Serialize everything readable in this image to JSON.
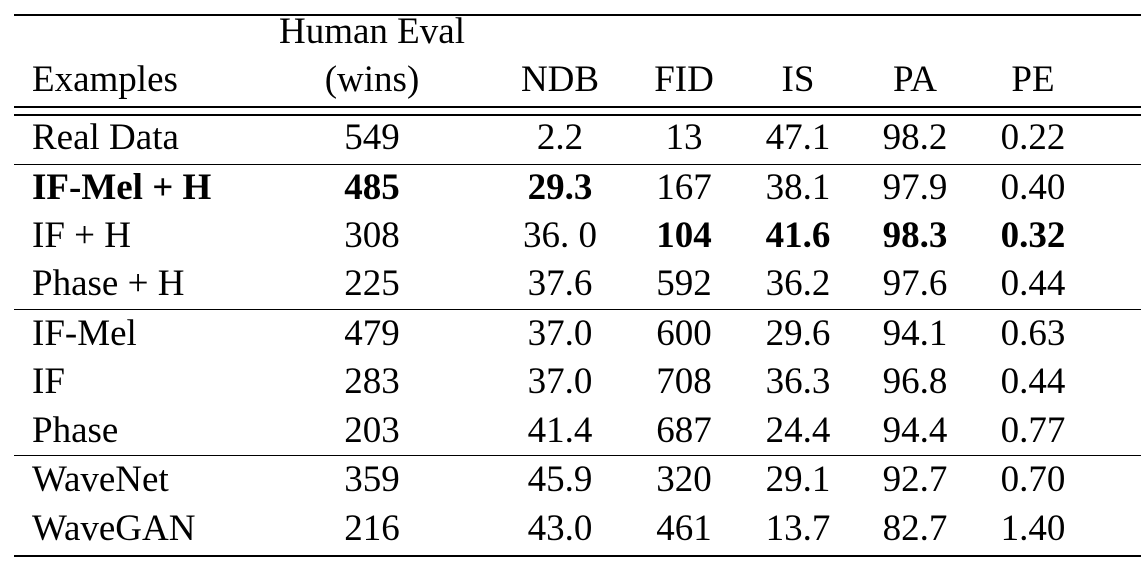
{
  "table": {
    "columns": [
      {
        "key": "examples",
        "line1": "",
        "line2": "Examples"
      },
      {
        "key": "human_eval",
        "line1": "Human Eval",
        "line2": "(wins)"
      },
      {
        "key": "ndb",
        "line1": "",
        "line2": "NDB"
      },
      {
        "key": "fid",
        "line1": "",
        "line2": "FID"
      },
      {
        "key": "is",
        "line1": "",
        "line2": "IS"
      },
      {
        "key": "pa",
        "line1": "",
        "line2": "PA"
      },
      {
        "key": "pe",
        "line1": "",
        "line2": "PE"
      }
    ],
    "groups": [
      {
        "rows": [
          {
            "cells": [
              "Real Data",
              "549",
              "2.2",
              "13",
              "47.1",
              "98.2",
              "0.22"
            ],
            "bold": []
          }
        ]
      },
      {
        "rows": [
          {
            "cells": [
              "IF-Mel + H",
              "485",
              "29.3",
              "167",
              "38.1",
              "97.9",
              "0.40"
            ],
            "bold": [
              0,
              1,
              2
            ]
          },
          {
            "cells": [
              "IF + H",
              "308",
              "36. 0",
              "104",
              "41.6",
              "98.3",
              "0.32"
            ],
            "bold": [
              3,
              4,
              5,
              6
            ]
          },
          {
            "cells": [
              "Phase + H",
              "225",
              "37.6",
              "592",
              "36.2",
              "97.6",
              "0.44"
            ],
            "bold": []
          }
        ]
      },
      {
        "rows": [
          {
            "cells": [
              "IF-Mel",
              "479",
              "37.0",
              "600",
              "29.6",
              "94.1",
              "0.63"
            ],
            "bold": []
          },
          {
            "cells": [
              "IF",
              "283",
              "37.0",
              "708",
              "36.3",
              "96.8",
              "0.44"
            ],
            "bold": []
          },
          {
            "cells": [
              "Phase",
              "203",
              "41.4",
              "687",
              "24.4",
              "94.4",
              "0.77"
            ],
            "bold": []
          }
        ]
      },
      {
        "rows": [
          {
            "cells": [
              "WaveNet",
              "359",
              "45.9",
              "320",
              "29.1",
              "92.7",
              "0.70"
            ],
            "bold": []
          },
          {
            "cells": [
              "WaveGAN",
              "216",
              "43.0",
              "461",
              "13.7",
              "82.7",
              "1.40"
            ],
            "bold": []
          }
        ]
      }
    ]
  }
}
